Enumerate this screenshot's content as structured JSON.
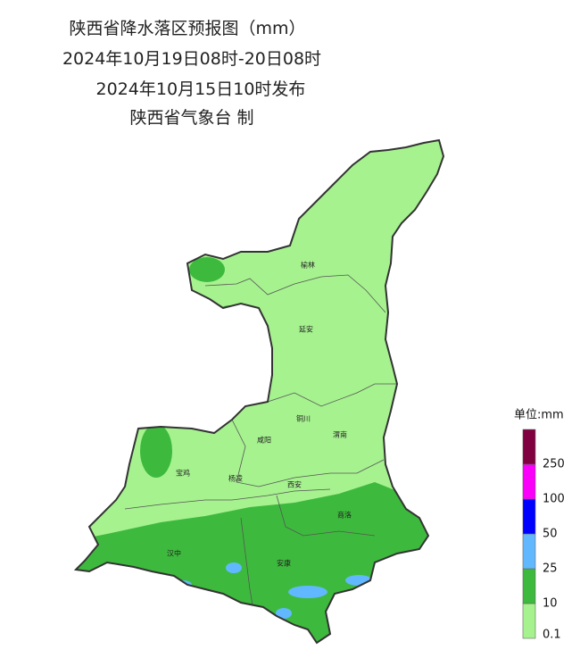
{
  "header": {
    "title": "陕西省降水落区预报图（mm）",
    "period": "2024年10月19日08时-20日08时",
    "issued": "2024年10月15日10时发布",
    "issuer": "陕西省气象台 制"
  },
  "cities": [
    "榆林",
    "延安",
    "铜川",
    "咸阳",
    "渭南",
    "宝鸡",
    "杨凌",
    "西安",
    "商洛",
    "汉中",
    "安康"
  ],
  "legend": {
    "title": "单位:mm",
    "levels": [
      {
        "label": "0.1",
        "color": "#a6f28f"
      },
      {
        "label": "10",
        "color": "#3dba3d"
      },
      {
        "label": "25",
        "color": "#61b8ff"
      },
      {
        "label": "50",
        "color": "#0000fe"
      },
      {
        "label": "100",
        "color": "#fa00fa"
      },
      {
        "label": "250",
        "color": "#800040"
      }
    ]
  }
}
